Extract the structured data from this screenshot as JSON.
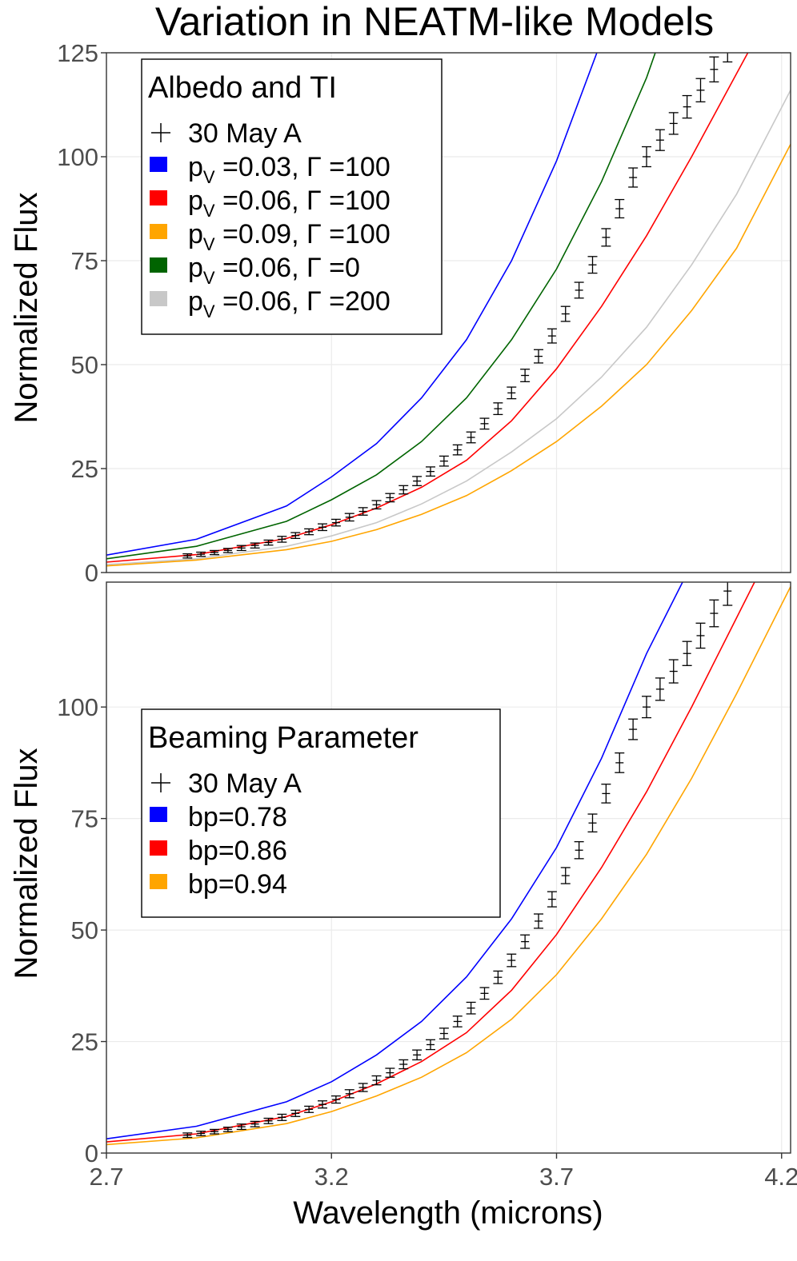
{
  "chart_data": {
    "title": "Variation in NEATM-like Models",
    "xlabel": "Wavelength (microns)",
    "xlim": [
      2.7,
      4.22
    ],
    "x_ticks": [
      "2.7",
      "3.2",
      "3.7",
      "4.2"
    ],
    "x_tick_values": [
      2.7,
      3.2,
      3.7,
      4.2
    ],
    "grid": true,
    "panels": [
      {
        "type": "line",
        "ylabel": "Normalized Flux",
        "ylim": [
          0,
          125
        ],
        "y_ticks": [
          "0",
          "25",
          "50",
          "75",
          "100",
          "125"
        ],
        "y_tick_values": [
          0,
          25,
          50,
          75,
          100,
          125
        ],
        "legend": {
          "position": "top-left",
          "title": "Albedo and TI",
          "observed_label": "30 May A",
          "entries": [
            {
              "pre": "p",
              "sub": "V",
              "post": " =0.03, Γ =100",
              "color": "#0000ff"
            },
            {
              "pre": "p",
              "sub": "V",
              "post": " =0.06, Γ =100",
              "color": "#ff0000"
            },
            {
              "pre": "p",
              "sub": "V",
              "post": " =0.09, Γ =100",
              "color": "#ffa500"
            },
            {
              "pre": "p",
              "sub": "V",
              "post": " =0.06, Γ =0",
              "color": "#006400"
            },
            {
              "pre": "p",
              "sub": "V",
              "post": " =0.06, Γ =200",
              "color": "#c8c8c8"
            }
          ]
        },
        "model_curves": [
          {
            "color": "#0000ff",
            "x": [
              2.7,
              2.9,
              3.1,
              3.2,
              3.3,
              3.4,
              3.5,
              3.6,
              3.7,
              3.8,
              3.9
            ],
            "y": [
              4.2,
              8.0,
              16.0,
              23.0,
              31.0,
              42.0,
              56.0,
              75.0,
              99.0,
              128.0,
              165.0
            ]
          },
          {
            "color": "#006400",
            "x": [
              2.7,
              2.9,
              3.1,
              3.2,
              3.3,
              3.4,
              3.5,
              3.6,
              3.7,
              3.8,
              3.9,
              4.0
            ],
            "y": [
              3.3,
              6.3,
              12.3,
              17.5,
              23.5,
              31.5,
              42.0,
              56.0,
              73.0,
              94.0,
              119.0,
              150.0
            ]
          },
          {
            "color": "#ff0000",
            "x": [
              2.7,
              2.9,
              3.1,
              3.2,
              3.3,
              3.4,
              3.5,
              3.6,
              3.7,
              3.8,
              3.9,
              4.0,
              4.1,
              4.2
            ],
            "y": [
              2.5,
              4.3,
              8.2,
              11.5,
              15.5,
              20.5,
              27.0,
              36.5,
              49.0,
              64.0,
              81.0,
              100.0,
              120.0,
              140.0
            ]
          },
          {
            "color": "#c8c8c8",
            "x": [
              2.7,
              2.9,
              3.1,
              3.2,
              3.3,
              3.4,
              3.5,
              3.6,
              3.7,
              3.8,
              3.9,
              4.0,
              4.1,
              4.22
            ],
            "y": [
              1.9,
              3.3,
              6.3,
              8.8,
              12.0,
              16.5,
              22.0,
              29.0,
              37.0,
              47.0,
              59.0,
              74.0,
              91.0,
              116.0
            ]
          },
          {
            "color": "#ffa500",
            "x": [
              2.7,
              2.9,
              3.1,
              3.2,
              3.3,
              3.4,
              3.5,
              3.6,
              3.7,
              3.8,
              3.9,
              4.0,
              4.1,
              4.22
            ],
            "y": [
              1.6,
              3.0,
              5.5,
              7.5,
              10.3,
              14.0,
              18.5,
              24.5,
              31.5,
              40.0,
              50.0,
              63.0,
              78.0,
              103.0
            ]
          }
        ]
      },
      {
        "type": "line",
        "ylabel": "Normalized Flux",
        "ylim": [
          0,
          128
        ],
        "y_ticks": [
          "0",
          "25",
          "50",
          "75",
          "100"
        ],
        "y_tick_values": [
          0,
          25,
          50,
          75,
          100
        ],
        "legend": {
          "position": "center-left",
          "title": "Beaming Parameter",
          "observed_label": "30 May A",
          "entries": [
            {
              "pre": "bp=0.78",
              "sub": "",
              "post": "",
              "color": "#0000ff"
            },
            {
              "pre": "bp=0.86",
              "sub": "",
              "post": "",
              "color": "#ff0000"
            },
            {
              "pre": "bp=0.94",
              "sub": "",
              "post": "",
              "color": "#ffa500"
            }
          ]
        },
        "model_curves": [
          {
            "color": "#0000ff",
            "x": [
              2.7,
              2.9,
              3.1,
              3.2,
              3.3,
              3.4,
              3.5,
              3.6,
              3.7,
              3.8,
              3.9,
              3.98
            ],
            "y": [
              3.2,
              6.0,
              11.5,
              16.0,
              22.0,
              29.5,
              39.5,
              52.5,
              68.5,
              88.5,
              112.0,
              128.0
            ]
          },
          {
            "color": "#ff0000",
            "x": [
              2.7,
              2.9,
              3.1,
              3.2,
              3.3,
              3.4,
              3.5,
              3.6,
              3.7,
              3.8,
              3.9,
              4.0,
              4.1,
              4.15
            ],
            "y": [
              2.5,
              4.3,
              8.2,
              11.5,
              15.5,
              20.5,
              27.0,
              36.5,
              49.0,
              64.0,
              81.0,
              100.0,
              120.0,
              130.0
            ]
          },
          {
            "color": "#ffa500",
            "x": [
              2.7,
              2.9,
              3.1,
              3.2,
              3.3,
              3.4,
              3.5,
              3.6,
              3.7,
              3.8,
              3.9,
              4.0,
              4.1,
              4.22
            ],
            "y": [
              1.9,
              3.4,
              6.6,
              9.3,
              12.8,
              17.0,
              22.5,
              30.0,
              40.0,
              52.5,
              67.0,
              84.0,
              103.0,
              127.0
            ]
          }
        ]
      }
    ],
    "observed": {
      "name": "30 May A",
      "x": [
        2.88,
        2.91,
        2.94,
        2.97,
        3.0,
        3.03,
        3.06,
        3.09,
        3.12,
        3.15,
        3.18,
        3.21,
        3.24,
        3.27,
        3.3,
        3.33,
        3.36,
        3.39,
        3.42,
        3.45,
        3.48,
        3.51,
        3.54,
        3.57,
        3.6,
        3.63,
        3.66,
        3.69,
        3.72,
        3.75,
        3.78,
        3.81,
        3.84,
        3.87,
        3.9,
        3.93,
        3.96,
        3.99,
        4.02,
        4.05,
        4.08
      ],
      "y": [
        4.0,
        4.4,
        4.8,
        5.3,
        5.9,
        6.5,
        7.2,
        8.0,
        8.9,
        9.8,
        10.9,
        12.0,
        13.3,
        14.7,
        16.3,
        18.0,
        19.9,
        22.0,
        24.3,
        26.8,
        29.5,
        32.5,
        35.8,
        39.4,
        43.2,
        47.4,
        52.0,
        56.9,
        62.2,
        67.9,
        74.0,
        80.6,
        87.5,
        95.0,
        100.0,
        104.0,
        108.0,
        112.0,
        116.0,
        121.0,
        126.0
      ],
      "err": [
        0.5,
        0.5,
        0.5,
        0.5,
        0.6,
        0.6,
        0.6,
        0.7,
        0.7,
        0.7,
        0.8,
        0.8,
        0.9,
        0.9,
        1.0,
        1.0,
        1.0,
        1.1,
        1.1,
        1.2,
        1.2,
        1.3,
        1.3,
        1.4,
        1.4,
        1.5,
        1.6,
        1.7,
        1.8,
        1.9,
        2.0,
        2.1,
        2.2,
        2.3,
        2.4,
        2.5,
        2.6,
        2.7,
        2.8,
        3.0,
        3.2
      ]
    }
  }
}
